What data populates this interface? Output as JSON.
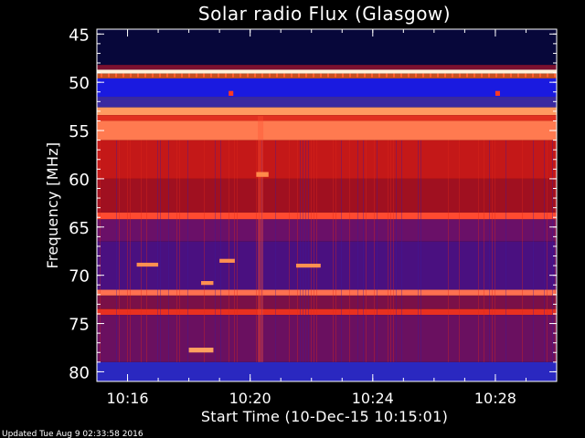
{
  "chart_data": {
    "type": "heatmap",
    "title": "Solar radio Flux (Glasgow)",
    "xlabel": "Start Time (10-Dec-15 10:15:01)",
    "ylabel": "Frequency [MHz]",
    "footer": "Updated Tue Aug  9 02:33:58 2016",
    "x_ticks": [
      "10:16",
      "10:20",
      "10:24",
      "10:28"
    ],
    "x_tick_minutes": [
      1,
      5,
      9,
      13
    ],
    "xlim_minutes": [
      0,
      15
    ],
    "y_ticks": [
      "45",
      "50",
      "55",
      "60",
      "65",
      "70",
      "75",
      "80"
    ],
    "y_tick_values": [
      45,
      50,
      55,
      60,
      65,
      70,
      75,
      80
    ],
    "ylim": [
      44.5,
      81
    ],
    "y_inverted": true,
    "colors": {
      "background": "#000000",
      "low": "#1a1aa8",
      "mid": "#c01010",
      "high": "#ffd0a0",
      "frame": "#ffffff"
    },
    "bands": [
      {
        "from": 44.5,
        "to": 48.2,
        "color": "#07073a"
      },
      {
        "from": 48.2,
        "to": 48.7,
        "color": "#7a1030"
      },
      {
        "from": 48.7,
        "to": 49.1,
        "color": "#fff0d8"
      },
      {
        "from": 49.1,
        "to": 49.6,
        "color": "#c85020"
      },
      {
        "from": 49.6,
        "to": 51.5,
        "color": "#1a1ae0"
      },
      {
        "from": 51.5,
        "to": 52.6,
        "color": "#3a2aa0"
      },
      {
        "from": 52.6,
        "to": 53.4,
        "color": "#ff9a60"
      },
      {
        "from": 53.4,
        "to": 54.0,
        "color": "#e03020"
      },
      {
        "from": 54.0,
        "to": 56.0,
        "color": "#ff7a50"
      },
      {
        "from": 56.0,
        "to": 60.0,
        "color": "#c41818"
      },
      {
        "from": 60.0,
        "to": 63.5,
        "color": "#a01020"
      },
      {
        "from": 63.5,
        "to": 64.2,
        "color": "#ff4a30"
      },
      {
        "from": 64.2,
        "to": 66.5,
        "color": "#6a1068"
      },
      {
        "from": 66.5,
        "to": 71.5,
        "color": "#4a1080"
      },
      {
        "from": 71.5,
        "to": 72.1,
        "color": "#ff7050"
      },
      {
        "from": 72.1,
        "to": 73.5,
        "color": "#7a1048"
      },
      {
        "from": 73.5,
        "to": 74.1,
        "color": "#e83020"
      },
      {
        "from": 74.1,
        "to": 79.0,
        "color": "#6a1060"
      },
      {
        "from": 79.0,
        "to": 81.0,
        "color": "#2a28c0"
      }
    ],
    "features": [
      {
        "x": 5.2,
        "y": 59.3,
        "w": 0.4,
        "h": 0.5,
        "color": "#ff8a4a"
      },
      {
        "x": 4.3,
        "y": 50.9,
        "w": 0.15,
        "h": 0.5,
        "color": "#ff3a20"
      },
      {
        "x": 13.0,
        "y": 50.9,
        "w": 0.15,
        "h": 0.5,
        "color": "#ff3a20"
      },
      {
        "x": 3.0,
        "y": 77.5,
        "w": 0.8,
        "h": 0.5,
        "color": "#ffa060"
      },
      {
        "x": 1.3,
        "y": 68.7,
        "w": 0.7,
        "h": 0.4,
        "color": "#ff9050"
      },
      {
        "x": 3.4,
        "y": 70.6,
        "w": 0.4,
        "h": 0.4,
        "color": "#ff9050"
      },
      {
        "x": 4.0,
        "y": 68.3,
        "w": 0.5,
        "h": 0.4,
        "color": "#ff9050"
      },
      {
        "x": 6.5,
        "y": 68.8,
        "w": 0.8,
        "h": 0.4,
        "color": "#ff9050"
      }
    ]
  }
}
